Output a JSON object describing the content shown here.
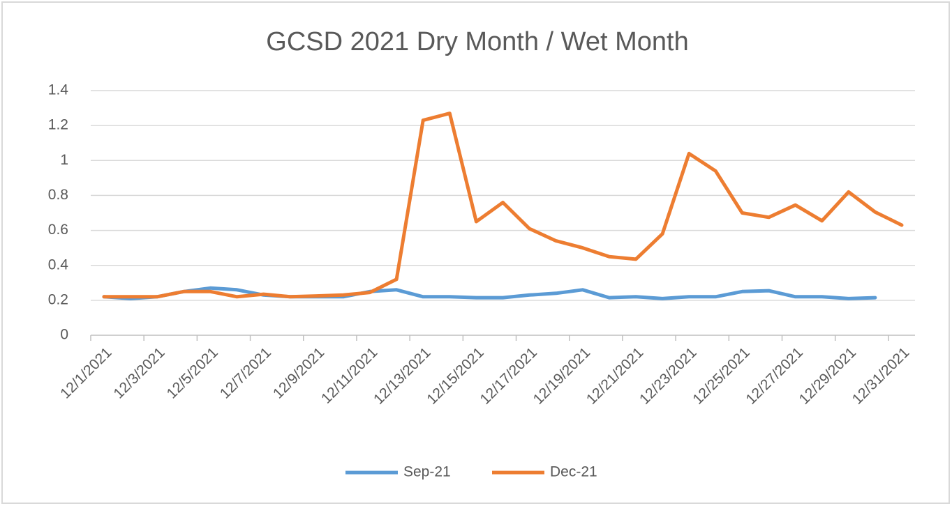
{
  "chart_data": {
    "type": "line",
    "title": "GCSD 2021 Dry Month / Wet Month",
    "categories": [
      "12/1/2021",
      null,
      "12/3/2021",
      null,
      "12/5/2021",
      null,
      "12/7/2021",
      null,
      "12/9/2021",
      null,
      "12/11/2021",
      null,
      "12/13/2021",
      null,
      "12/15/2021",
      null,
      "12/17/2021",
      null,
      "12/19/2021",
      null,
      "12/21/2021",
      null,
      "12/23/2021",
      null,
      "12/25/2021",
      null,
      "12/27/2021",
      null,
      "12/29/2021",
      null,
      "12/31/2021"
    ],
    "series": [
      {
        "name": "Sep-21",
        "color": "#5b9bd5",
        "values": [
          0.22,
          0.21,
          0.22,
          0.25,
          0.27,
          0.26,
          0.23,
          0.22,
          0.22,
          0.22,
          0.25,
          0.26,
          0.22,
          0.22,
          0.215,
          0.215,
          0.23,
          0.24,
          0.26,
          0.215,
          0.22,
          0.21,
          0.22,
          0.22,
          0.25,
          0.255,
          0.22,
          0.22,
          0.21,
          0.215,
          null
        ]
      },
      {
        "name": "Dec-21",
        "color": "#ed7d31",
        "values": [
          0.22,
          0.22,
          0.22,
          0.25,
          0.25,
          0.22,
          0.235,
          0.22,
          0.225,
          0.23,
          0.245,
          0.32,
          1.23,
          1.27,
          0.65,
          0.76,
          0.61,
          0.54,
          0.5,
          0.45,
          0.435,
          0.58,
          1.04,
          0.94,
          0.7,
          0.675,
          0.745,
          0.655,
          0.82,
          0.705,
          0.63
        ]
      }
    ],
    "ylim": [
      0,
      1.4
    ],
    "yticks": [
      0,
      0.2,
      0.4,
      0.6,
      0.8,
      1,
      1.2,
      1.4
    ],
    "grid": true,
    "legend": "bottom"
  }
}
